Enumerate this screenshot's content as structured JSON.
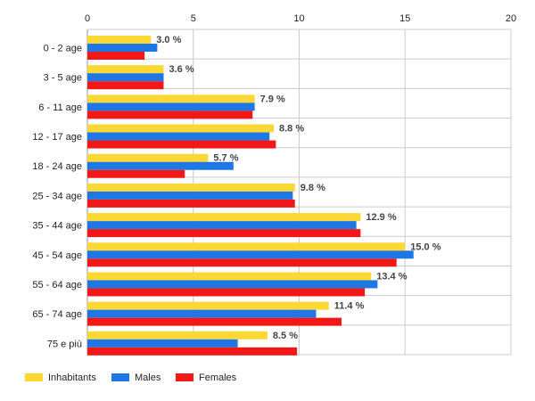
{
  "chart_data": {
    "type": "bar",
    "orientation": "horizontal",
    "categories": [
      "0 - 2 age",
      "3 - 5 age",
      "6 - 11 age",
      "12 - 17 age",
      "18 - 24 age",
      "25 - 34 age",
      "35 - 44 age",
      "45 - 54 age",
      "55 - 64 age",
      "65 - 74 age",
      "75 e più"
    ],
    "series": [
      {
        "name": "Inhabitants",
        "color": "#fbd834",
        "values": [
          3.0,
          3.6,
          7.9,
          8.8,
          5.7,
          9.8,
          12.9,
          15.0,
          13.4,
          11.4,
          8.5
        ]
      },
      {
        "name": "Males",
        "color": "#1f77e6",
        "values": [
          3.3,
          3.6,
          7.9,
          8.6,
          6.9,
          9.7,
          12.7,
          15.4,
          13.7,
          10.8,
          7.1
        ]
      },
      {
        "name": "Females",
        "color": "#f21818",
        "values": [
          2.7,
          3.6,
          7.8,
          8.9,
          4.6,
          9.8,
          12.9,
          14.6,
          13.1,
          12.0,
          9.9
        ]
      }
    ],
    "data_labels": [
      "3.0 %",
      "3.6 %",
      "7.9 %",
      "8.8 %",
      "5.7 %",
      "9.8 %",
      "12.9 %",
      "15.0 %",
      "13.4 %",
      "11.4 %",
      "8.5 %"
    ],
    "x_ticks": [
      "0",
      "5",
      "10",
      "15",
      "20"
    ],
    "xlim": [
      0,
      20
    ],
    "grid": true,
    "legend_position": "bottom-left",
    "title": "",
    "xlabel": "",
    "ylabel": ""
  }
}
